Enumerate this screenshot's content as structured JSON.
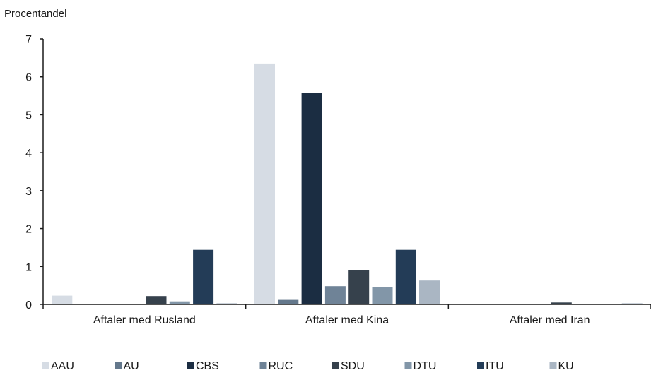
{
  "chart_data": {
    "type": "bar",
    "title": "",
    "xlabel": "",
    "ylabel": "Procentandel",
    "ylim": [
      0,
      7
    ],
    "yticks": [
      0,
      1,
      2,
      3,
      4,
      5,
      6,
      7
    ],
    "grid": false,
    "legend_position": "bottom",
    "categories": [
      "Aftaler med Rusland",
      "Aftaler med Kina",
      "Aftaler med Iran"
    ],
    "series": [
      {
        "name": "AAU",
        "color": "#d6dce4",
        "values": [
          0.23,
          6.35,
          0.0
        ]
      },
      {
        "name": "AU",
        "color": "#64788c",
        "values": [
          0.0,
          0.12,
          0.0
        ]
      },
      {
        "name": "CBS",
        "color": "#1b2d42",
        "values": [
          0.0,
          5.58,
          0.0
        ]
      },
      {
        "name": "RUC",
        "color": "#6f8397",
        "values": [
          0.0,
          0.48,
          0.0
        ]
      },
      {
        "name": "SDU",
        "color": "#36414c",
        "values": [
          0.22,
          0.9,
          0.05
        ]
      },
      {
        "name": "DTU",
        "color": "#8296a8",
        "values": [
          0.08,
          0.45,
          0.0
        ]
      },
      {
        "name": "ITU",
        "color": "#233c57",
        "values": [
          1.44,
          1.44,
          0.0
        ]
      },
      {
        "name": "KU",
        "color": "#aab6c3",
        "values": [
          0.03,
          0.63,
          0.03
        ]
      }
    ]
  }
}
